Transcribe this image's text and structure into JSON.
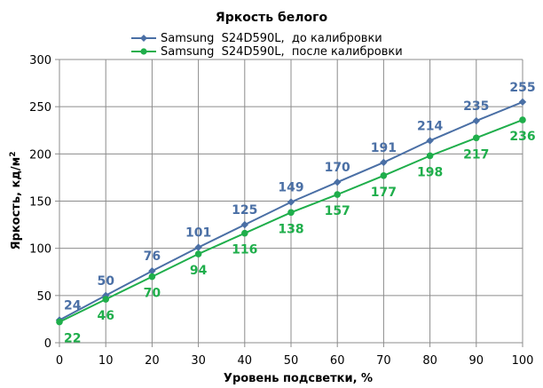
{
  "chart_data": {
    "type": "line",
    "title": "Яркость белого",
    "xlabel": "Уровень подсветки, %",
    "ylabel": "Яркость, кд/м",
    "ylabel_sup": "2",
    "x": [
      0,
      10,
      20,
      30,
      40,
      50,
      60,
      70,
      80,
      90,
      100
    ],
    "xticks": [
      "0",
      "10",
      "20",
      "30",
      "40",
      "50",
      "60",
      "70",
      "80",
      "90",
      "100"
    ],
    "yticks": [
      "0",
      "50",
      "100",
      "150",
      "200",
      "250",
      "300"
    ],
    "xlim": [
      0,
      100
    ],
    "ylim": [
      0,
      300
    ],
    "grid": true,
    "legend_position": "top",
    "series": [
      {
        "name": "Samsung  S24D590L,  до калибровки",
        "color": "#4a6fa5",
        "marker": "diamond",
        "values": [
          24,
          50,
          76,
          101,
          125,
          149,
          170,
          191,
          214,
          235,
          255
        ],
        "labels": [
          "24",
          "50",
          "76",
          "101",
          "125",
          "149",
          "170",
          "191",
          "214",
          "235",
          "255"
        ],
        "label_side": "above"
      },
      {
        "name": "Samsung  S24D590L,  после калибровки",
        "color": "#1fae4b",
        "marker": "circle",
        "values": [
          22,
          46,
          70,
          94,
          116,
          138,
          157,
          177,
          198,
          217,
          236
        ],
        "labels": [
          "22",
          "46",
          "70",
          "94",
          "116",
          "138",
          "157",
          "177",
          "198",
          "217",
          "236"
        ],
        "label_side": "below"
      }
    ]
  }
}
